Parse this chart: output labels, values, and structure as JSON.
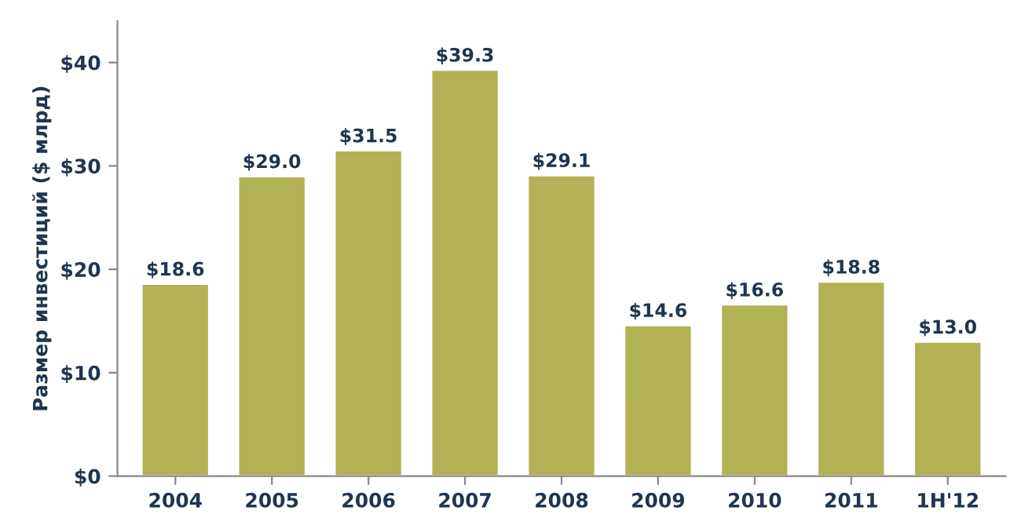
{
  "chart_data": {
    "type": "bar",
    "ylabel": "Размер инвестиций ($ млрд)",
    "categories": [
      "2004",
      "2005",
      "2006",
      "2007",
      "2008",
      "2009",
      "2010",
      "2011",
      "1H'12"
    ],
    "values": [
      18.6,
      29.0,
      31.5,
      39.3,
      29.1,
      14.6,
      16.6,
      18.8,
      13.0
    ],
    "value_labels": [
      "$18.6",
      "$29.0",
      "$31.5",
      "$39.3",
      "$29.1",
      "$14.6",
      "$16.6",
      "$18.8",
      "$13.0"
    ],
    "color": "#b3b155",
    "ylim": [
      0,
      44
    ],
    "yticks": [
      {
        "value": 0,
        "label": "$0"
      },
      {
        "value": 10,
        "label": "$10"
      },
      {
        "value": 20,
        "label": "$20"
      },
      {
        "value": 30,
        "label": "$30"
      },
      {
        "value": 40,
        "label": "$40"
      }
    ],
    "grid": false,
    "legend": false
  }
}
